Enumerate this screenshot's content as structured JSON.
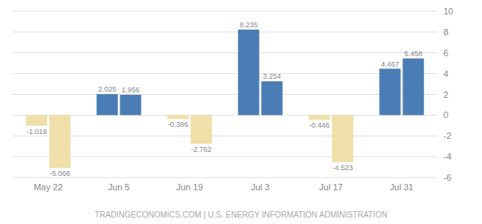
{
  "chart_data": {
    "type": "bar",
    "categories": [
      "May 22",
      "Jun 5",
      "Jun 19",
      "Jul 3",
      "Jul 17",
      "Jul 31"
    ],
    "series": [
      {
        "values": [
          -1.019,
          2.025,
          -0.386,
          8.235,
          -0.446,
          4.467
        ],
        "colors": [
          "#f0dfa8",
          "#4a7db5",
          "#f0dfa8",
          "#4a7db5",
          "#f0dfa8",
          "#4a7db5"
        ]
      },
      {
        "values": [
          -5.068,
          1.956,
          -2.762,
          3.254,
          -4.523,
          5.458
        ],
        "colors": [
          "#f0dfa8",
          "#4a7db5",
          "#f0dfa8",
          "#4a7db5",
          "#f0dfa8",
          "#4a7db5"
        ]
      }
    ],
    "ylim": [
      -6,
      10
    ],
    "yticks": [
      -6,
      -4,
      -2,
      0,
      2,
      4,
      6,
      8,
      10
    ],
    "grid": true,
    "data_labels": true,
    "annotations": [
      "TRADINGECONOMICS.COM | U.S. ENERGY INFORMATION ADMINISTRATION"
    ]
  }
}
